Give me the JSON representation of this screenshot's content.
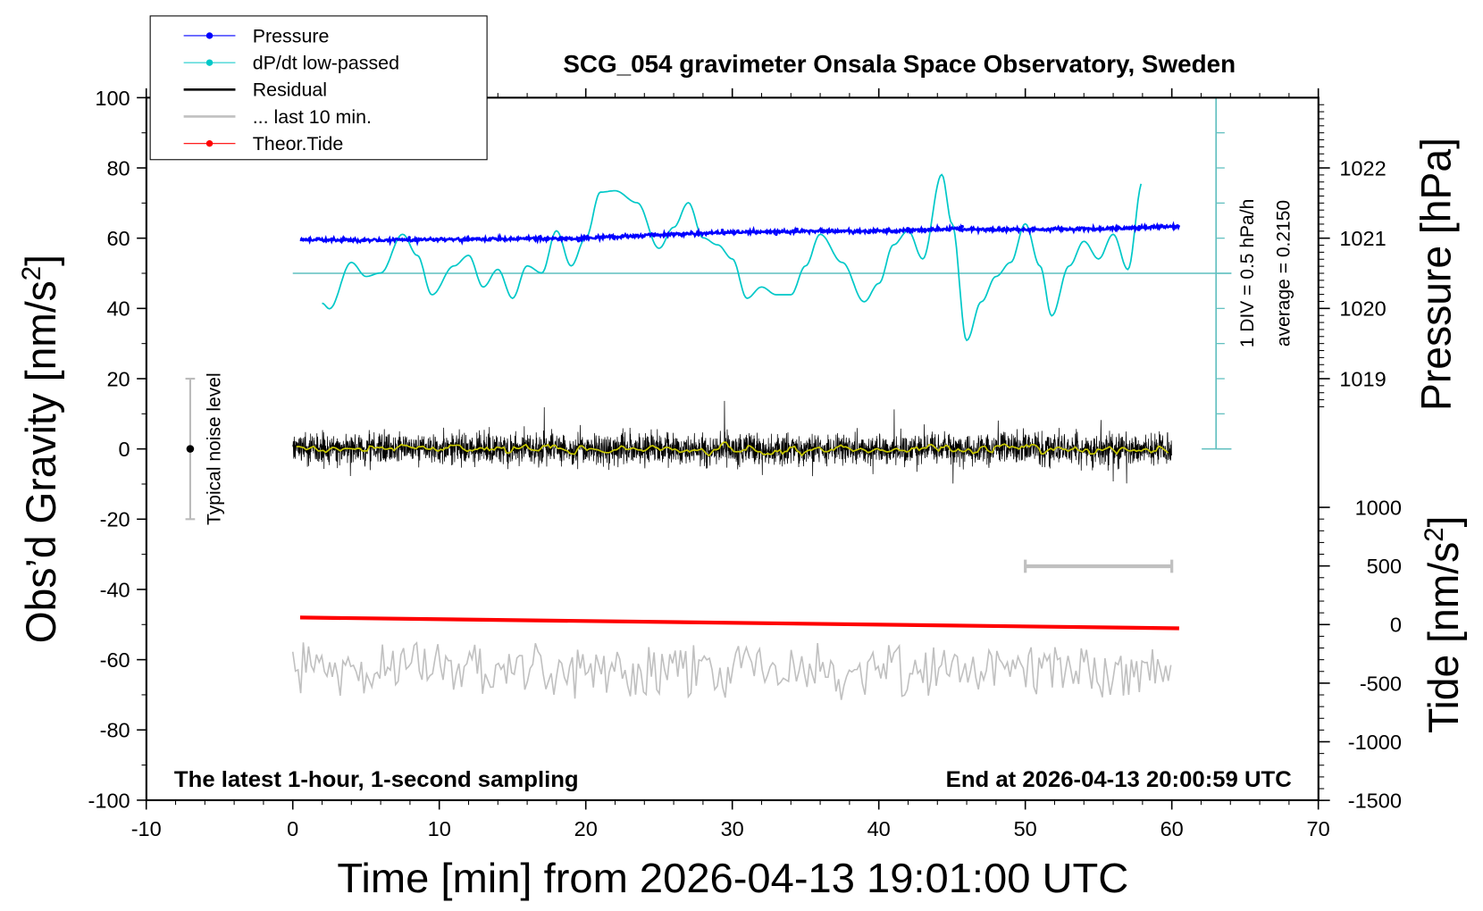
{
  "chart_data": {
    "type": "line",
    "title": "SCG_054 gravimeter Onsala Space Observatory, Sweden",
    "xlabel": "Time [min] from 2026-04-13 19:01:00 UTC",
    "ylabel_left": "Obs'd Gravity [nm/s2]",
    "ylabel_right_top": "Pressure [hPa]",
    "ylabel_right_bottom": "Tide [nm/s2]",
    "xlim": [
      -10,
      70
    ],
    "ylim_left": [
      -100,
      100
    ],
    "x_ticks": [
      "-10",
      "0",
      "10",
      "20",
      "30",
      "40",
      "50",
      "60",
      "70"
    ],
    "y_left_ticks": [
      "100",
      "80",
      "60",
      "40",
      "20",
      "0",
      "-20",
      "-40",
      "-60",
      "-80",
      "-100"
    ],
    "pressure_ticks": [
      "1022",
      "1021",
      "1020",
      "1019"
    ],
    "tide_ticks": [
      "1000",
      "500",
      "0",
      "-500",
      "-1000",
      "-1500"
    ],
    "annotation_left": "The latest 1-hour, 1-second sampling",
    "annotation_right": "End at 2026-04-13 20:00:59 UTC",
    "noise_label": "Typical noise level",
    "noise_level_range": [
      -20,
      20
    ],
    "dpdt_scale_label": "1 DIV = 0.5 hPa/h",
    "dpdt_average_label": "average = 0.2150",
    "dpdt_average": 0.215,
    "dpdt_div": 0.5,
    "last10_span_min": [
      50,
      60
    ],
    "legend": {
      "placement": "top-left",
      "entries": [
        {
          "label": "Pressure",
          "color": "#0000ff",
          "marker": "dot"
        },
        {
          "label": "dP/dt low-passed",
          "color": "#00c8c8",
          "marker": "dot"
        },
        {
          "label": "Residual",
          "color": "#000000",
          "marker": "line"
        },
        {
          "label": "... last 10 min.",
          "color": "#c0c0c0",
          "marker": "line"
        },
        {
          "label": "Theor.Tide",
          "color": "#ff0000",
          "marker": "dot"
        }
      ]
    },
    "series": [
      {
        "name": "Pressure",
        "units": "hPa",
        "t": [
          0.5,
          5,
          10,
          15,
          20,
          25,
          30,
          35,
          40,
          45,
          50,
          55,
          60.5
        ],
        "values": [
          1020.98,
          1020.97,
          1020.98,
          1020.99,
          1021.0,
          1021.05,
          1021.08,
          1021.1,
          1021.1,
          1021.13,
          1021.12,
          1021.13,
          1021.17
        ]
      },
      {
        "name": "dP/dt low-passed",
        "units": "hPa/h",
        "t": [
          2,
          2.5,
          4,
          5,
          6,
          7.5,
          8.5,
          9.5,
          11,
          12,
          13,
          14,
          15,
          16,
          17,
          18,
          19,
          20,
          21,
          22,
          23.5,
          25,
          26,
          27,
          28,
          29,
          30,
          31,
          32,
          33,
          34,
          35,
          36,
          37.5,
          39,
          40,
          41,
          42,
          43,
          44.3,
          45,
          46,
          47,
          48,
          49,
          50,
          51,
          51.8,
          53,
          54,
          55,
          56,
          57,
          58
        ],
        "values": [
          -0.21,
          -0.29,
          0.37,
          0.17,
          0.22,
          0.77,
          0.47,
          -0.09,
          0.32,
          0.47,
          0.02,
          0.27,
          -0.14,
          0.32,
          0.22,
          0.82,
          0.32,
          0.72,
          1.37,
          1.39,
          1.22,
          0.57,
          0.87,
          1.22,
          0.72,
          0.62,
          0.42,
          -0.14,
          0.02,
          -0.09,
          -0.09,
          0.32,
          0.77,
          0.37,
          -0.19,
          0.07,
          0.62,
          0.82,
          0.42,
          1.62,
          0.92,
          -0.74,
          -0.19,
          0.17,
          0.37,
          0.92,
          0.32,
          -0.39,
          0.32,
          0.67,
          0.42,
          0.77,
          0.27,
          1.52
        ]
      },
      {
        "name": "Residual",
        "units": "nm/s2",
        "t_range": [
          0,
          60
        ],
        "center": 0,
        "approx_range": [
          -14,
          17
        ]
      },
      {
        "name": "... last 10 min.",
        "units": "nm/s2",
        "t_range": [
          0,
          60
        ],
        "center": -63,
        "approx_range": [
          -73,
          -52
        ]
      },
      {
        "name": "Theor.Tide",
        "units": "nm/s2",
        "t": [
          0.5,
          60.5
        ],
        "values": [
          60,
          -32
        ]
      }
    ],
    "colors": {
      "pressure": "#0000ff",
      "dpdt": "#00c8c8",
      "dpdt_axis": "#5fbfbf",
      "residual": "#000000",
      "smoothed": "#c8c800",
      "last10": "#c0c0c0",
      "tide": "#ff0000"
    }
  }
}
